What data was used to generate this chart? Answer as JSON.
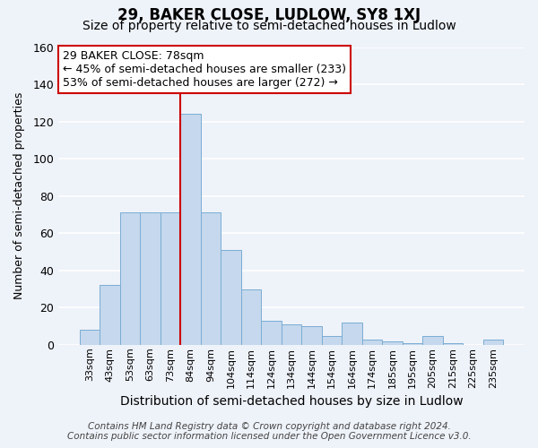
{
  "title": "29, BAKER CLOSE, LUDLOW, SY8 1XJ",
  "subtitle": "Size of property relative to semi-detached houses in Ludlow",
  "xlabel": "Distribution of semi-detached houses by size in Ludlow",
  "ylabel": "Number of semi-detached properties",
  "bar_color": "#c5d8ed",
  "bar_edge_color": "#7aadd4",
  "background_color": "#eef2f9",
  "grid_color": "#ffffff",
  "categories": [
    "33sqm",
    "43sqm",
    "53sqm",
    "63sqm",
    "73sqm",
    "84sqm",
    "94sqm",
    "104sqm",
    "114sqm",
    "124sqm",
    "134sqm",
    "144sqm",
    "154sqm",
    "164sqm",
    "174sqm",
    "185sqm",
    "195sqm",
    "205sqm",
    "215sqm",
    "225sqm",
    "235sqm"
  ],
  "values": [
    8,
    32,
    71,
    71,
    71,
    124,
    71,
    51,
    30,
    13,
    11,
    10,
    5,
    12,
    3,
    2,
    1,
    5,
    1,
    0,
    3
  ],
  "ylim": [
    0,
    160
  ],
  "yticks": [
    0,
    20,
    40,
    60,
    80,
    100,
    120,
    140,
    160
  ],
  "vline_x": 5.0,
  "vline_color": "#cc0000",
  "annotation_title": "29 BAKER CLOSE: 78sqm",
  "annotation_line1": "← 45% of semi-detached houses are smaller (233)",
  "annotation_line2": "53% of semi-detached houses are larger (272) →",
  "annotation_box_color": "#ffffff",
  "annotation_box_edge_color": "#cc0000",
  "footer1": "Contains HM Land Registry data © Crown copyright and database right 2024.",
  "footer2": "Contains public sector information licensed under the Open Government Licence v3.0.",
  "title_fontsize": 12,
  "subtitle_fontsize": 10,
  "xlabel_fontsize": 10,
  "ylabel_fontsize": 9,
  "annotation_fontsize": 9,
  "footer_fontsize": 7.5
}
